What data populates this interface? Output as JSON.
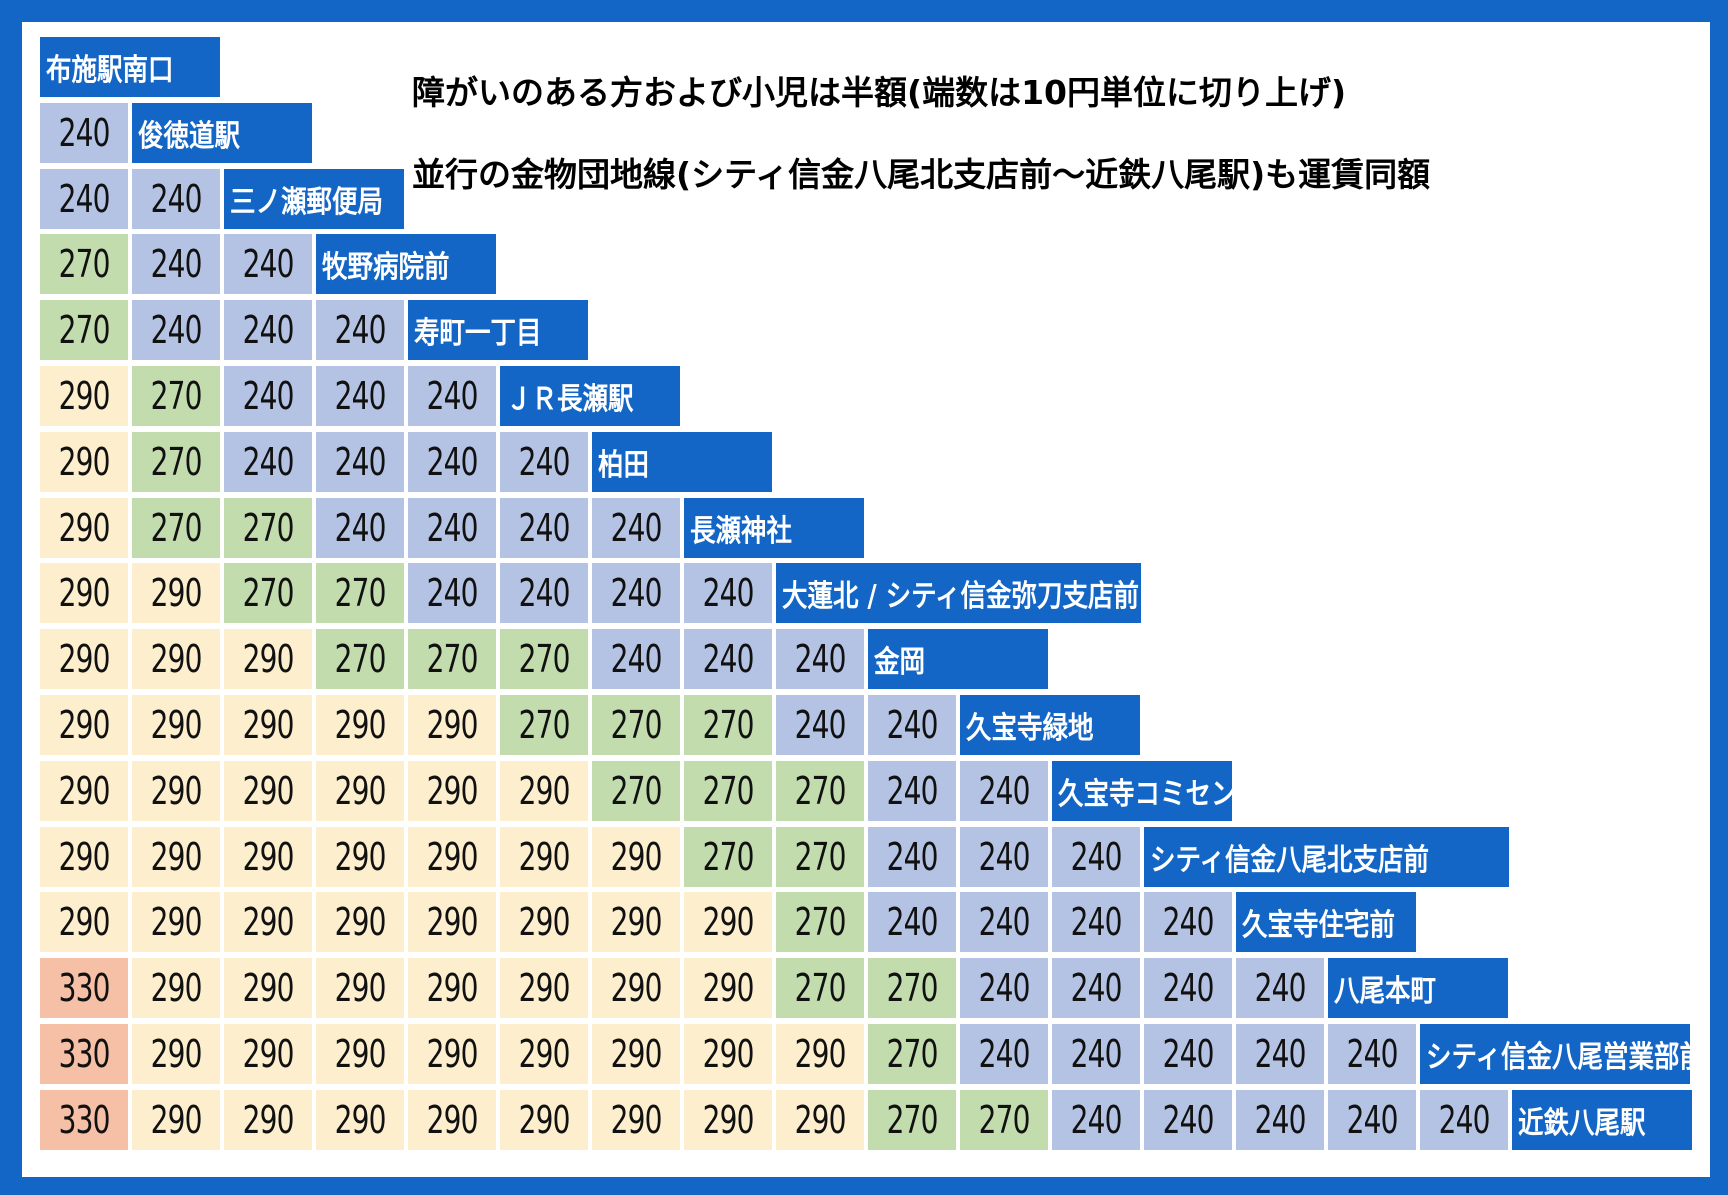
{
  "notes": {
    "line1": "障がいのある方および小児は半額(端数は10円単位に切り上げ)",
    "line2": "並行の金物団地線(シティ信金八尾北支店前～近鉄八尾駅)も運賃同額"
  },
  "colors": {
    "frame": "#1366c6",
    "stop_bg": "#1366c6",
    "fare_240": "#b4c3e4",
    "fare_270": "#c2dcae",
    "fare_290": "#fdefce",
    "fare_330": "#f6c0a6"
  },
  "stops": [
    "布施駅南口",
    "俊徳道駅",
    "三ノ瀬郵便局",
    "牧野病院前",
    "寿町一丁目",
    "ＪＲ長瀬駅",
    "柏田",
    "長瀬神社",
    "大蓮北 / シティ信金弥刀支店前",
    "金岡",
    "久宝寺緑地",
    "久宝寺コミセン前",
    "シティ信金八尾北支店前",
    "久宝寺住宅前",
    "八尾本町",
    "シティ信金八尾営業部前",
    "近鉄八尾駅"
  ],
  "fares": [
    [],
    [
      "240"
    ],
    [
      "240",
      "240"
    ],
    [
      "270",
      "240",
      "240"
    ],
    [
      "270",
      "240",
      "240",
      "240"
    ],
    [
      "290",
      "270",
      "240",
      "240",
      "240"
    ],
    [
      "290",
      "270",
      "240",
      "240",
      "240",
      "240"
    ],
    [
      "290",
      "270",
      "270",
      "240",
      "240",
      "240",
      "240"
    ],
    [
      "290",
      "290",
      "270",
      "270",
      "240",
      "240",
      "240",
      "240"
    ],
    [
      "290",
      "290",
      "290",
      "270",
      "270",
      "270",
      "240",
      "240",
      "240"
    ],
    [
      "290",
      "290",
      "290",
      "290",
      "290",
      "270",
      "270",
      "270",
      "240",
      "240"
    ],
    [
      "290",
      "290",
      "290",
      "290",
      "290",
      "290",
      "270",
      "270",
      "270",
      "240",
      "240"
    ],
    [
      "290",
      "290",
      "290",
      "290",
      "290",
      "290",
      "290",
      "270",
      "270",
      "240",
      "240",
      "240"
    ],
    [
      "290",
      "290",
      "290",
      "290",
      "290",
      "290",
      "290",
      "290",
      "270",
      "240",
      "240",
      "240",
      "240"
    ],
    [
      "330",
      "290",
      "290",
      "290",
      "290",
      "290",
      "290",
      "290",
      "270",
      "270",
      "240",
      "240",
      "240",
      "240"
    ],
    [
      "330",
      "290",
      "290",
      "290",
      "290",
      "290",
      "290",
      "290",
      "290",
      "270",
      "240",
      "240",
      "240",
      "240",
      "240"
    ],
    [
      "330",
      "290",
      "290",
      "290",
      "290",
      "290",
      "290",
      "290",
      "290",
      "270",
      "270",
      "240",
      "240",
      "240",
      "240",
      "240"
    ]
  ]
}
